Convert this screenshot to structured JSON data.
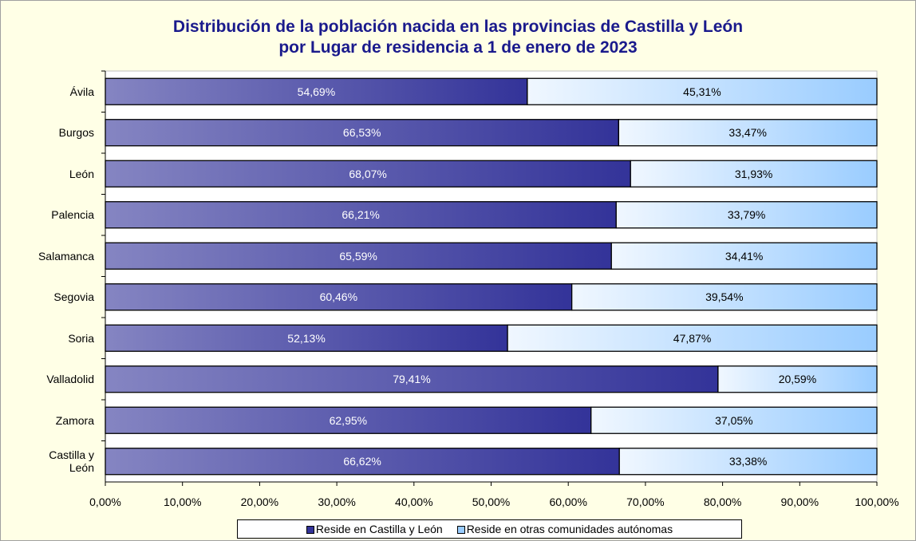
{
  "chart_data": {
    "type": "stacked_bar_horizontal",
    "title": "Distribución de la población nacida en las provincias de Castilla y León\npor Lugar de residencia a 1 de enero de 2023",
    "categories": [
      "Ávila",
      "Burgos",
      "León",
      "Palencia",
      "Salamanca",
      "Segovia",
      "Soria",
      "Valladolid",
      "Zamora",
      "Castilla y\nLeón"
    ],
    "series": [
      {
        "name": "Reside en Castilla y León",
        "color": "#333399",
        "values": [
          54.69,
          66.53,
          68.07,
          66.21,
          65.59,
          60.46,
          52.13,
          79.41,
          62.95,
          66.62
        ],
        "value_labels": [
          "54,69%",
          "66,53%",
          "68,07%",
          "66,21%",
          "65,59%",
          "60,46%",
          "52,13%",
          "79,41%",
          "62,95%",
          "66,62%"
        ]
      },
      {
        "name": "Reside en otras comunidades autónomas",
        "color": "#99ccff",
        "values": [
          45.31,
          33.47,
          31.93,
          33.79,
          34.41,
          39.54,
          47.87,
          20.59,
          37.05,
          33.38
        ],
        "value_labels": [
          "45,31%",
          "33,47%",
          "31,93%",
          "33,79%",
          "34,41%",
          "39,54%",
          "47,87%",
          "20,59%",
          "37,05%",
          "33,38%"
        ]
      }
    ],
    "xlim": [
      0,
      100
    ],
    "xticks": [
      {
        "value": 0,
        "label": "0,00%"
      },
      {
        "value": 10,
        "label": "10,00%"
      },
      {
        "value": 20,
        "label": "20,00%"
      },
      {
        "value": 30,
        "label": "30,00%"
      },
      {
        "value": 40,
        "label": "40,00%"
      },
      {
        "value": 50,
        "label": "50,00%"
      },
      {
        "value": 60,
        "label": "60,00%"
      },
      {
        "value": 70,
        "label": "70,00%"
      },
      {
        "value": 80,
        "label": "80,00%"
      },
      {
        "value": 90,
        "label": "90,00%"
      },
      {
        "value": 100,
        "label": "100,00%"
      }
    ],
    "legend": "bottom"
  }
}
